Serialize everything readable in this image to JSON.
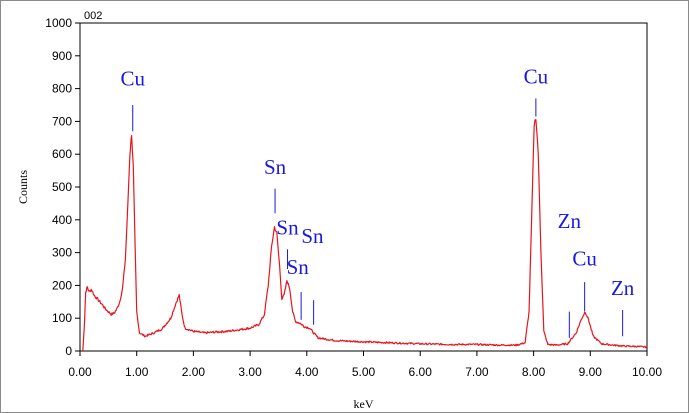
{
  "chart_data": {
    "type": "line",
    "corner_label": "002",
    "xlabel": "keV",
    "ylabel": "Counts",
    "xlim": [
      0,
      10
    ],
    "ylim": [
      0,
      1000
    ],
    "x_ticks": [
      "0.00",
      "1.00",
      "2.00",
      "3.00",
      "4.00",
      "5.00",
      "6.00",
      "7.00",
      "8.00",
      "9.00",
      "10.00"
    ],
    "y_ticks": [
      "0",
      "100",
      "200",
      "300",
      "400",
      "500",
      "600",
      "700",
      "800",
      "900",
      "1000"
    ],
    "grid": false,
    "colors": {
      "spectrum": "#e8141a",
      "label": "#1a1adf",
      "marker": "#1a1adf"
    },
    "series": [
      {
        "points": [
          [
            0.05,
            0
          ],
          [
            0.08,
            90
          ],
          [
            0.1,
            180
          ],
          [
            0.13,
            195
          ],
          [
            0.16,
            180
          ],
          [
            0.2,
            188
          ],
          [
            0.25,
            170
          ],
          [
            0.3,
            160
          ],
          [
            0.35,
            150
          ],
          [
            0.4,
            140
          ],
          [
            0.45,
            128
          ],
          [
            0.5,
            120
          ],
          [
            0.55,
            112
          ],
          [
            0.6,
            115
          ],
          [
            0.65,
            128
          ],
          [
            0.7,
            150
          ],
          [
            0.75,
            190
          ],
          [
            0.8,
            280
          ],
          [
            0.84,
            430
          ],
          [
            0.88,
            600
          ],
          [
            0.91,
            662
          ],
          [
            0.94,
            560
          ],
          [
            0.97,
            330
          ],
          [
            1.0,
            120
          ],
          [
            1.05,
            55
          ],
          [
            1.15,
            45
          ],
          [
            1.3,
            55
          ],
          [
            1.45,
            68
          ],
          [
            1.6,
            100
          ],
          [
            1.7,
            150
          ],
          [
            1.75,
            170
          ],
          [
            1.8,
            110
          ],
          [
            1.85,
            70
          ],
          [
            2.0,
            60
          ],
          [
            2.2,
            55
          ],
          [
            2.4,
            58
          ],
          [
            2.6,
            60
          ],
          [
            2.8,
            65
          ],
          [
            3.0,
            70
          ],
          [
            3.15,
            80
          ],
          [
            3.25,
            110
          ],
          [
            3.32,
            200
          ],
          [
            3.38,
            320
          ],
          [
            3.43,
            378
          ],
          [
            3.47,
            360
          ],
          [
            3.52,
            260
          ],
          [
            3.56,
            160
          ],
          [
            3.6,
            170
          ],
          [
            3.65,
            215
          ],
          [
            3.7,
            190
          ],
          [
            3.75,
            120
          ],
          [
            3.8,
            90
          ],
          [
            3.88,
            85
          ],
          [
            3.95,
            75
          ],
          [
            4.05,
            70
          ],
          [
            4.12,
            55
          ],
          [
            4.2,
            40
          ],
          [
            4.5,
            32
          ],
          [
            5.0,
            28
          ],
          [
            5.5,
            25
          ],
          [
            6.0,
            22
          ],
          [
            6.5,
            20
          ],
          [
            7.0,
            20
          ],
          [
            7.4,
            18
          ],
          [
            7.7,
            18
          ],
          [
            7.85,
            25
          ],
          [
            7.92,
            120
          ],
          [
            7.97,
            430
          ],
          [
            8.01,
            690
          ],
          [
            8.04,
            712
          ],
          [
            8.08,
            610
          ],
          [
            8.13,
            300
          ],
          [
            8.18,
            60
          ],
          [
            8.25,
            20
          ],
          [
            8.4,
            18
          ],
          [
            8.6,
            22
          ],
          [
            8.75,
            55
          ],
          [
            8.85,
            100
          ],
          [
            8.91,
            120
          ],
          [
            8.97,
            95
          ],
          [
            9.05,
            45
          ],
          [
            9.2,
            22
          ],
          [
            9.4,
            18
          ],
          [
            9.6,
            15
          ],
          [
            9.8,
            14
          ],
          [
            10.0,
            12
          ]
        ]
      }
    ],
    "annotations": [
      {
        "text": "Cu",
        "marker_x": 0.93,
        "marker_top": 750,
        "marker_bottom": 670,
        "label_x": 0.93,
        "label_y": 810
      },
      {
        "text": "Sn",
        "marker_x": 3.44,
        "marker_top": 495,
        "marker_bottom": 420,
        "label_x": 3.44,
        "label_y": 540
      },
      {
        "text": "Sn",
        "marker_x": 3.66,
        "marker_top": 310,
        "marker_bottom": 250,
        "label_x": 3.66,
        "label_y": 355
      },
      {
        "text": "Sn",
        "marker_x": 3.9,
        "marker_top": 180,
        "marker_bottom": 95,
        "label_x": 4.1,
        "label_y": 330
      },
      {
        "text": "Sn",
        "marker_x": 4.12,
        "marker_top": 155,
        "marker_bottom": 80,
        "label_x": 3.84,
        "label_y": 235
      },
      {
        "text": "Cu",
        "marker_x": 8.04,
        "marker_top": 770,
        "marker_bottom": 715,
        "label_x": 8.04,
        "label_y": 815
      },
      {
        "text": "Zn",
        "marker_x": 8.63,
        "marker_top": 120,
        "marker_bottom": 40,
        "label_x": 8.63,
        "label_y": 375
      },
      {
        "text": "Cu",
        "marker_x": 8.9,
        "marker_top": 210,
        "marker_bottom": 120,
        "label_x": 8.9,
        "label_y": 260
      },
      {
        "text": "Zn",
        "marker_x": 9.57,
        "marker_top": 125,
        "marker_bottom": 45,
        "label_x": 9.57,
        "label_y": 170
      }
    ]
  }
}
